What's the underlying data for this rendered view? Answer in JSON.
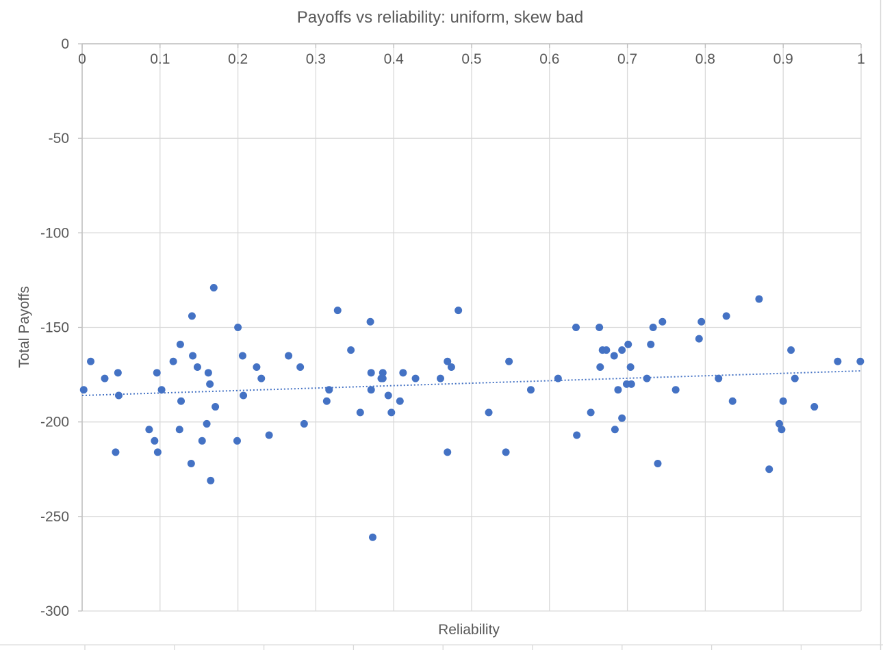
{
  "chart_data": {
    "type": "scatter",
    "title": "Payoffs vs reliability: uniform, skew bad",
    "xlabel": "Reliability",
    "ylabel": "Total Payoffs",
    "xlim": [
      0,
      1
    ],
    "ylim": [
      -300,
      0
    ],
    "x_ticks": [
      "0",
      "0.1",
      "0.2",
      "0.3",
      "0.4",
      "0.5",
      "0.6",
      "0.7",
      "0.8",
      "0.9",
      "1"
    ],
    "y_ticks": [
      "0",
      "-50",
      "-100",
      "-150",
      "-200",
      "-250",
      "-300"
    ],
    "grid": true,
    "legend": "none",
    "marker_color": "#4472C4",
    "trendline": {
      "type": "linear",
      "style": "dotted",
      "color": "#4472C4",
      "y_at_x0": -186,
      "y_at_x1": -173
    },
    "points": [
      {
        "x": 0.002,
        "y": -183
      },
      {
        "x": 0.011,
        "y": -168
      },
      {
        "x": 0.029,
        "y": -177
      },
      {
        "x": 0.043,
        "y": -216
      },
      {
        "x": 0.046,
        "y": -174
      },
      {
        "x": 0.047,
        "y": -186
      },
      {
        "x": 0.086,
        "y": -204
      },
      {
        "x": 0.093,
        "y": -210
      },
      {
        "x": 0.096,
        "y": -174
      },
      {
        "x": 0.097,
        "y": -216
      },
      {
        "x": 0.102,
        "y": -183
      },
      {
        "x": 0.117,
        "y": -168
      },
      {
        "x": 0.125,
        "y": -204
      },
      {
        "x": 0.126,
        "y": -159
      },
      {
        "x": 0.127,
        "y": -189
      },
      {
        "x": 0.14,
        "y": -222
      },
      {
        "x": 0.141,
        "y": -144
      },
      {
        "x": 0.142,
        "y": -165
      },
      {
        "x": 0.148,
        "y": -171
      },
      {
        "x": 0.154,
        "y": -210
      },
      {
        "x": 0.16,
        "y": -201
      },
      {
        "x": 0.162,
        "y": -174
      },
      {
        "x": 0.164,
        "y": -180
      },
      {
        "x": 0.165,
        "y": -231
      },
      {
        "x": 0.169,
        "y": -129
      },
      {
        "x": 0.171,
        "y": -192
      },
      {
        "x": 0.199,
        "y": -210
      },
      {
        "x": 0.2,
        "y": -150
      },
      {
        "x": 0.206,
        "y": -165
      },
      {
        "x": 0.207,
        "y": -186
      },
      {
        "x": 0.224,
        "y": -171
      },
      {
        "x": 0.23,
        "y": -177
      },
      {
        "x": 0.24,
        "y": -207
      },
      {
        "x": 0.265,
        "y": -165
      },
      {
        "x": 0.28,
        "y": -171
      },
      {
        "x": 0.285,
        "y": -201
      },
      {
        "x": 0.314,
        "y": -189
      },
      {
        "x": 0.317,
        "y": -183
      },
      {
        "x": 0.328,
        "y": -141
      },
      {
        "x": 0.345,
        "y": -162
      },
      {
        "x": 0.357,
        "y": -195
      },
      {
        "x": 0.37,
        "y": -147
      },
      {
        "x": 0.371,
        "y": -183
      },
      {
        "x": 0.371,
        "y": -174
      },
      {
        "x": 0.373,
        "y": -261
      },
      {
        "x": 0.384,
        "y": -177
      },
      {
        "x": 0.386,
        "y": -174
      },
      {
        "x": 0.386,
        "y": -177
      },
      {
        "x": 0.393,
        "y": -186
      },
      {
        "x": 0.397,
        "y": -195
      },
      {
        "x": 0.408,
        "y": -189
      },
      {
        "x": 0.412,
        "y": -174
      },
      {
        "x": 0.428,
        "y": -177
      },
      {
        "x": 0.46,
        "y": -177
      },
      {
        "x": 0.469,
        "y": -168
      },
      {
        "x": 0.469,
        "y": -216
      },
      {
        "x": 0.474,
        "y": -171
      },
      {
        "x": 0.483,
        "y": -141
      },
      {
        "x": 0.522,
        "y": -195
      },
      {
        "x": 0.544,
        "y": -216
      },
      {
        "x": 0.548,
        "y": -168
      },
      {
        "x": 0.576,
        "y": -183
      },
      {
        "x": 0.611,
        "y": -177
      },
      {
        "x": 0.634,
        "y": -150
      },
      {
        "x": 0.635,
        "y": -207
      },
      {
        "x": 0.653,
        "y": -195
      },
      {
        "x": 0.664,
        "y": -150
      },
      {
        "x": 0.665,
        "y": -171
      },
      {
        "x": 0.668,
        "y": -162
      },
      {
        "x": 0.673,
        "y": -162
      },
      {
        "x": 0.683,
        "y": -165
      },
      {
        "x": 0.684,
        "y": -204
      },
      {
        "x": 0.688,
        "y": -183
      },
      {
        "x": 0.693,
        "y": -162
      },
      {
        "x": 0.693,
        "y": -198
      },
      {
        "x": 0.699,
        "y": -180
      },
      {
        "x": 0.701,
        "y": -159
      },
      {
        "x": 0.704,
        "y": -171
      },
      {
        "x": 0.705,
        "y": -180
      },
      {
        "x": 0.725,
        "y": -177
      },
      {
        "x": 0.73,
        "y": -159
      },
      {
        "x": 0.733,
        "y": -150
      },
      {
        "x": 0.739,
        "y": -222
      },
      {
        "x": 0.745,
        "y": -147
      },
      {
        "x": 0.762,
        "y": -183
      },
      {
        "x": 0.792,
        "y": -156
      },
      {
        "x": 0.795,
        "y": -147
      },
      {
        "x": 0.817,
        "y": -177
      },
      {
        "x": 0.827,
        "y": -144
      },
      {
        "x": 0.835,
        "y": -189
      },
      {
        "x": 0.869,
        "y": -135
      },
      {
        "x": 0.882,
        "y": -225
      },
      {
        "x": 0.895,
        "y": -201
      },
      {
        "x": 0.898,
        "y": -204
      },
      {
        "x": 0.9,
        "y": -189
      },
      {
        "x": 0.91,
        "y": -162
      },
      {
        "x": 0.915,
        "y": -177
      },
      {
        "x": 0.94,
        "y": -192
      },
      {
        "x": 0.97,
        "y": -168
      },
      {
        "x": 0.999,
        "y": -168
      }
    ]
  }
}
